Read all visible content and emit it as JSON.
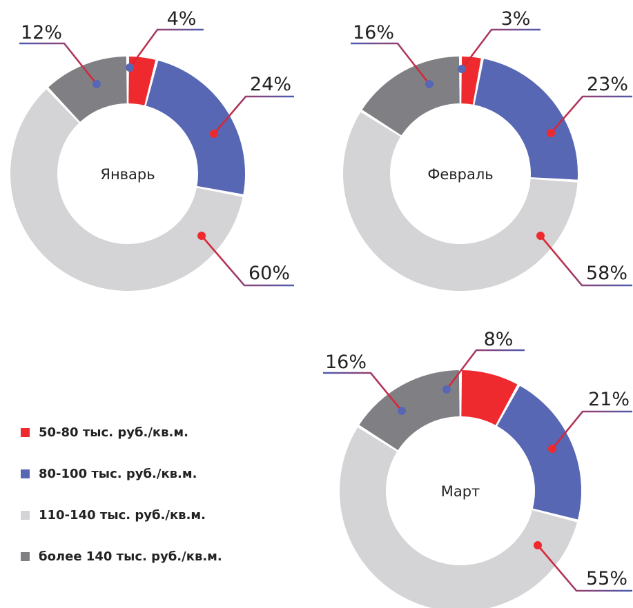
{
  "chart_data": {
    "type": "donut",
    "series_names": [
      "50-80 тыс. руб./кв.м.",
      "80-100 тыс. руб./кв.м.",
      "110-140 тыс. руб./кв.м.",
      "более 140 тыс. руб./кв.м."
    ],
    "colors": [
      "#ee2a2e",
      "#5767b3",
      "#d4d4d6",
      "#808084"
    ],
    "charts": [
      {
        "month": "Январь",
        "values": [
          4,
          24,
          60,
          12
        ],
        "labels": [
          "4%",
          "24%",
          "60%",
          "12%"
        ]
      },
      {
        "month": "Февраль",
        "values": [
          3,
          23,
          58,
          16
        ],
        "labels": [
          "3%",
          "23%",
          "58%",
          "16%"
        ]
      },
      {
        "month": "Март",
        "values": [
          8,
          21,
          55,
          16
        ],
        "labels": [
          "8%",
          "21%",
          "55%",
          "16%"
        ]
      }
    ]
  },
  "legend": {
    "items": [
      {
        "label": "50-80 тыс. руб./кв.м.",
        "color": "#ee2a2e"
      },
      {
        "label": "80-100 тыс. руб./кв.м.",
        "color": "#5767b3"
      },
      {
        "label": "110-140 тыс. руб./кв.м.",
        "color": "#d4d4d6"
      },
      {
        "label": "более 140 тыс. руб./кв.м.",
        "color": "#808084"
      }
    ]
  }
}
